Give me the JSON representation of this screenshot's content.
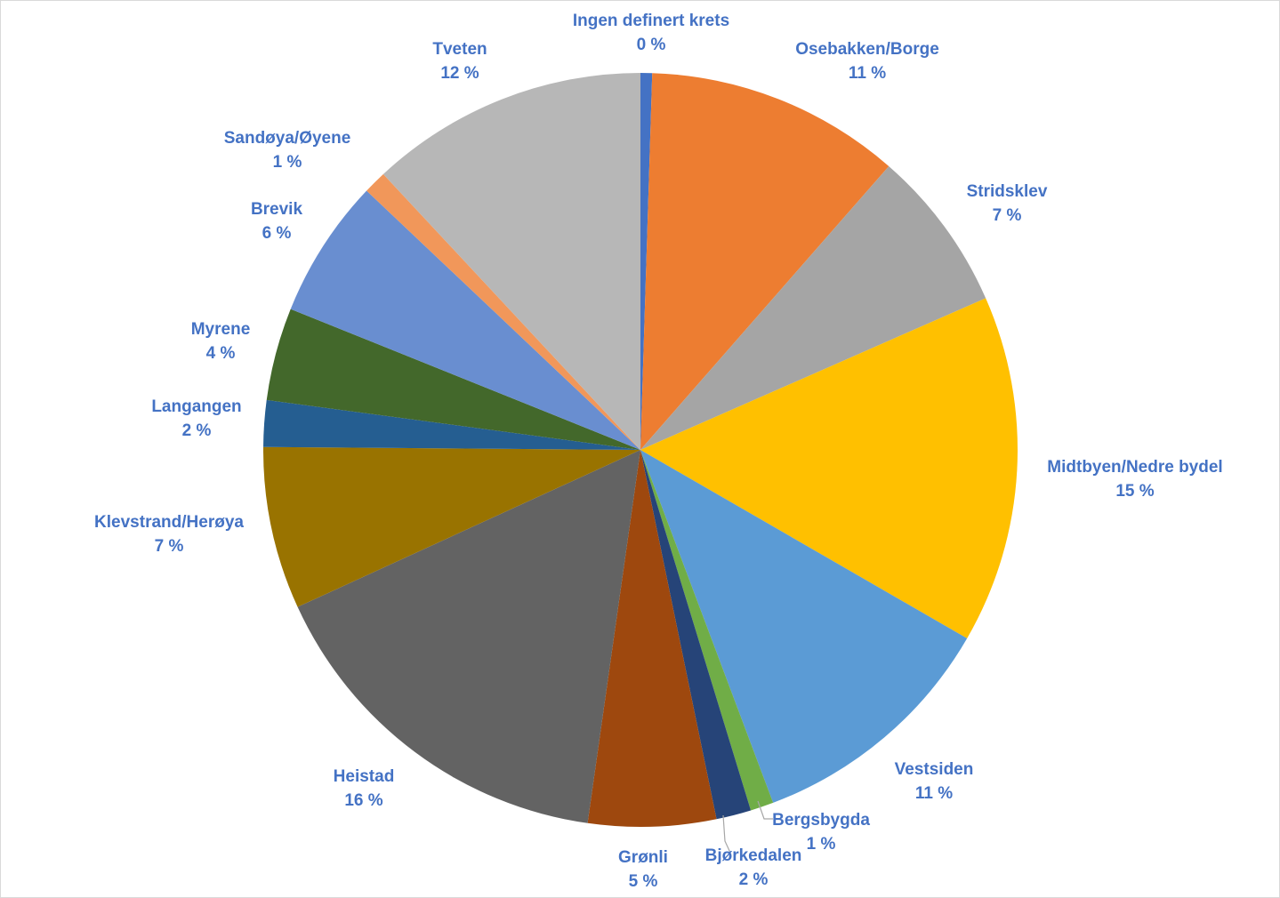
{
  "chart_data": {
    "type": "pie",
    "title": "",
    "start_angle_deg": 0,
    "direction": "clockwise",
    "legend": "none",
    "slices": [
      {
        "name": "Ingen definert krets",
        "value": 0.5,
        "label": "0 %",
        "color": "#4472c4"
      },
      {
        "name": "Osebakken/Borge",
        "value": 11,
        "label": "11 %",
        "color": "#ed7d31"
      },
      {
        "name": "Stridsklev",
        "value": 7,
        "label": "7 %",
        "color": "#a5a5a5"
      },
      {
        "name": "Midtbyen/Nedre bydel",
        "value": 15,
        "label": "15 %",
        "color": "#ffc000"
      },
      {
        "name": "Vestsiden",
        "value": 11,
        "label": "11 %",
        "color": "#5b9bd5"
      },
      {
        "name": "Bergsbygda",
        "value": 1,
        "label": "1 %",
        "color": "#70ad47"
      },
      {
        "name": "Bjørkedalen",
        "value": 1.5,
        "label": "2 %",
        "color": "#264478"
      },
      {
        "name": "Grønli",
        "value": 5.5,
        "label": "5 %",
        "color": "#9e480e"
      },
      {
        "name": "Heistad",
        "value": 16,
        "label": "16 %",
        "color": "#636363"
      },
      {
        "name": "Klevstrand/Herøya",
        "value": 7,
        "label": "7 %",
        "color": "#997300"
      },
      {
        "name": "Langangen",
        "value": 2,
        "label": "2 %",
        "color": "#255e91"
      },
      {
        "name": "Myrene",
        "value": 4,
        "label": "4 %",
        "color": "#43682b"
      },
      {
        "name": "Brevik",
        "value": 6,
        "label": "6 %",
        "color": "#698ed0"
      },
      {
        "name": "Sandøya/Øyene",
        "value": 1,
        "label": "1 %",
        "color": "#f1975a"
      },
      {
        "name": "Tveten",
        "value": 12,
        "label": "12 %",
        "color": "#b7b7b7"
      }
    ]
  }
}
